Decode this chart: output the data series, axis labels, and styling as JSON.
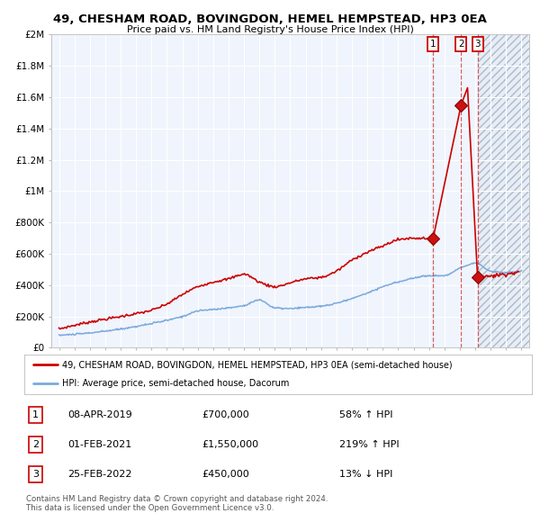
{
  "title": "49, CHESHAM ROAD, BOVINGDON, HEMEL HEMPSTEAD, HP3 0EA",
  "subtitle": "Price paid vs. HM Land Registry's House Price Index (HPI)",
  "red_label": "49, CHESHAM ROAD, BOVINGDON, HEMEL HEMPSTEAD, HP3 0EA (semi-detached house)",
  "blue_label": "HPI: Average price, semi-detached house, Dacorum",
  "transactions": [
    {
      "num": "1",
      "date": "08-APR-2019",
      "price": 700000,
      "pct": "58%",
      "dir": "↑",
      "x_year": 2019.27
    },
    {
      "num": "2",
      "date": "01-FEB-2021",
      "price": 1550000,
      "pct": "219%",
      "dir": "↑",
      "x_year": 2021.08
    },
    {
      "num": "3",
      "date": "25-FEB-2022",
      "price": 450000,
      "pct": "13%",
      "dir": "↓",
      "x_year": 2022.15
    }
  ],
  "footer": "Contains HM Land Registry data © Crown copyright and database right 2024.\nThis data is licensed under the Open Government Licence v3.0.",
  "ylim": [
    0,
    2000000
  ],
  "xlim_start": 1994.5,
  "xlim_end": 2025.5,
  "plot_bg": "#f0f4fc",
  "hatch_bg": "#e8edf5",
  "red_color": "#cc0000",
  "blue_color": "#7aaadd",
  "grid_color": "#ffffff",
  "dashed_color": "#cc4444",
  "marker_color": "#aa0000",
  "spine_color": "#bbbbbb"
}
